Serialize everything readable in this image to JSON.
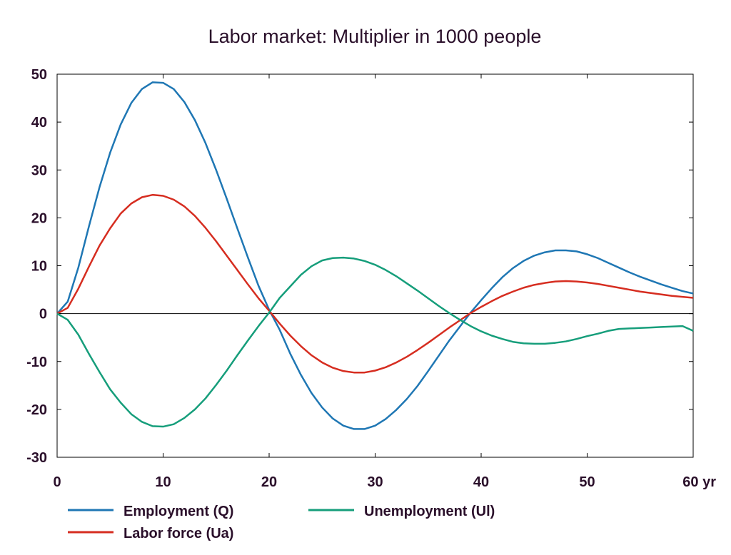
{
  "chart_data": {
    "type": "line",
    "title": "Labor market: Multiplier in 1000 people",
    "xlabel": "",
    "ylabel": "",
    "xlim": [
      0,
      60
    ],
    "ylim": [
      -30,
      50
    ],
    "x_ticks": [
      0,
      10,
      20,
      30,
      40,
      50,
      60
    ],
    "x_tick_labels": [
      "0",
      "10",
      "20",
      "30",
      "40",
      "50",
      "60 yr"
    ],
    "y_ticks": [
      -30,
      -20,
      -10,
      0,
      10,
      20,
      30,
      40,
      50
    ],
    "y_tick_labels": [
      "-30",
      "-20",
      "-10",
      "0",
      "10",
      "20",
      "30",
      "40",
      "50"
    ],
    "grid": false,
    "zero_line": true,
    "legend_position": "bottom",
    "series": [
      {
        "name": "Employment (Q)",
        "color": "#1f77b4",
        "x": [
          0,
          1,
          2,
          3,
          4,
          5,
          6,
          7,
          8,
          9,
          10,
          11,
          12,
          13,
          14,
          15,
          16,
          17,
          18,
          19,
          20,
          21,
          22,
          23,
          24,
          25,
          26,
          27,
          28,
          29,
          30,
          31,
          32,
          33,
          34,
          35,
          36,
          37,
          38,
          39,
          40,
          41,
          42,
          43,
          44,
          45,
          46,
          47,
          48,
          49,
          50,
          51,
          52,
          53,
          54,
          55,
          56,
          57,
          58,
          59,
          60
        ],
        "values": [
          0,
          2.5,
          9.6,
          18.2,
          26.4,
          33.6,
          39.5,
          44.0,
          46.9,
          48.3,
          48.2,
          46.9,
          44.2,
          40.4,
          35.6,
          30.0,
          24.0,
          17.8,
          11.7,
          5.8,
          0.8,
          -3.4,
          -8.4,
          -12.8,
          -16.6,
          -19.6,
          -21.9,
          -23.4,
          -24.1,
          -24.1,
          -23.4,
          -22.0,
          -20.1,
          -17.8,
          -15.1,
          -12.0,
          -8.8,
          -5.6,
          -2.7,
          0.2,
          2.8,
          5.3,
          7.6,
          9.5,
          11.0,
          12.1,
          12.8,
          13.2,
          13.2,
          13.0,
          12.4,
          11.6,
          10.6,
          9.6,
          8.6,
          7.7,
          6.9,
          6.1,
          5.4,
          4.7,
          4.2
        ]
      },
      {
        "name": "Labor force (Ua)",
        "color": "#d62d20",
        "x": [
          0,
          1,
          2,
          3,
          4,
          5,
          6,
          7,
          8,
          9,
          10,
          11,
          12,
          13,
          14,
          15,
          16,
          17,
          18,
          19,
          20,
          21,
          22,
          23,
          24,
          25,
          26,
          27,
          28,
          29,
          30,
          31,
          32,
          33,
          34,
          35,
          36,
          37,
          38,
          39,
          40,
          41,
          42,
          43,
          44,
          45,
          46,
          47,
          48,
          49,
          50,
          51,
          52,
          53,
          54,
          55,
          56,
          57,
          58,
          59,
          60
        ],
        "values": [
          0,
          1.2,
          5.2,
          9.8,
          14.2,
          17.8,
          20.9,
          23.0,
          24.3,
          24.8,
          24.6,
          23.8,
          22.4,
          20.4,
          17.9,
          15.1,
          12.1,
          9.1,
          6.1,
          3.2,
          0.6,
          -2.1,
          -4.6,
          -6.8,
          -8.7,
          -10.2,
          -11.3,
          -12.0,
          -12.3,
          -12.3,
          -11.9,
          -11.2,
          -10.2,
          -9.0,
          -7.6,
          -6.1,
          -4.5,
          -2.9,
          -1.4,
          0.1,
          1.4,
          2.6,
          3.7,
          4.6,
          5.4,
          6.0,
          6.4,
          6.7,
          6.8,
          6.7,
          6.5,
          6.2,
          5.8,
          5.4,
          5.0,
          4.6,
          4.3,
          4.0,
          3.7,
          3.5,
          3.3
        ]
      },
      {
        "name": "Unemployment (Ul)",
        "color": "#169e7b",
        "x": [
          0,
          1,
          2,
          3,
          4,
          5,
          6,
          7,
          8,
          9,
          10,
          11,
          12,
          13,
          14,
          15,
          16,
          17,
          18,
          19,
          20,
          21,
          22,
          23,
          24,
          25,
          26,
          27,
          28,
          29,
          30,
          31,
          32,
          33,
          34,
          35,
          36,
          37,
          38,
          39,
          40,
          41,
          42,
          43,
          44,
          45,
          46,
          47,
          48,
          49,
          50,
          51,
          52,
          53,
          54,
          55,
          56,
          57,
          58,
          59,
          60
        ],
        "values": [
          0,
          -1.3,
          -4.4,
          -8.4,
          -12.2,
          -15.8,
          -18.6,
          -21.0,
          -22.6,
          -23.5,
          -23.6,
          -23.1,
          -21.8,
          -20.0,
          -17.7,
          -14.9,
          -11.9,
          -8.7,
          -5.6,
          -2.6,
          0.2,
          3.3,
          5.7,
          8.1,
          9.9,
          11.1,
          11.6,
          11.7,
          11.5,
          11.0,
          10.2,
          9.1,
          7.8,
          6.3,
          4.8,
          3.2,
          1.6,
          0.1,
          -1.3,
          -2.6,
          -3.7,
          -4.6,
          -5.3,
          -5.9,
          -6.2,
          -6.3,
          -6.3,
          -6.1,
          -5.8,
          -5.3,
          -4.7,
          -4.2,
          -3.6,
          -3.2,
          -3.1,
          -3.0,
          -2.9,
          -2.8,
          -2.7,
          -2.6,
          -3.6
        ]
      }
    ]
  }
}
